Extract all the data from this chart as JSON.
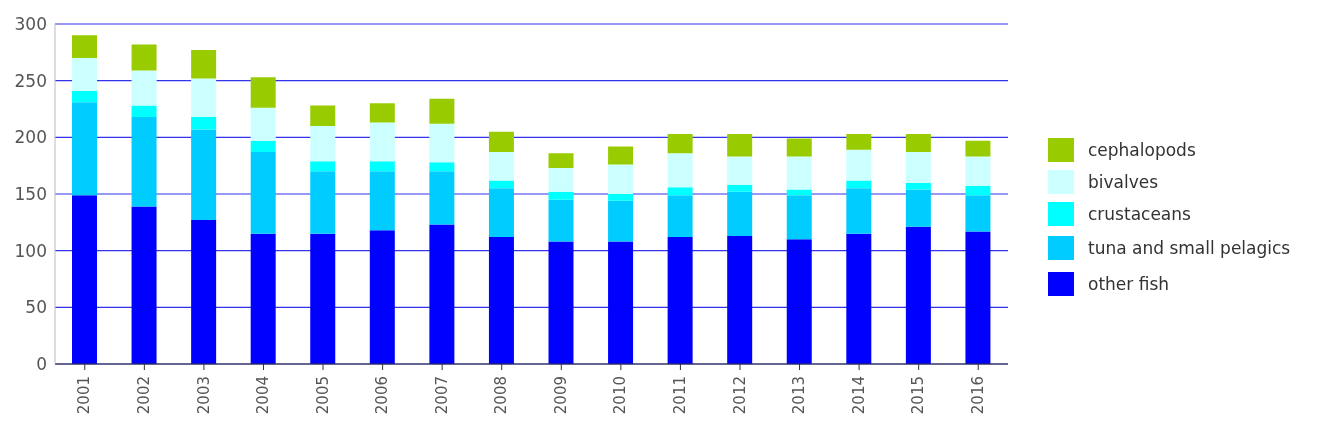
{
  "chart_data": {
    "type": "bar",
    "stacked": true,
    "categories": [
      "2001",
      "2002",
      "2003",
      "2004",
      "2005",
      "2006",
      "2007",
      "2008",
      "2009",
      "2010",
      "2011",
      "2012",
      "2013",
      "2014",
      "2015",
      "2016"
    ],
    "series": [
      {
        "name": "other fish",
        "color": "#0000ff",
        "values": [
          149,
          139,
          127,
          115,
          115,
          118,
          123,
          112,
          108,
          108,
          112,
          113,
          110,
          115,
          121,
          117
        ]
      },
      {
        "name": "tuna and small pelagics",
        "color": "#00ccff",
        "values": [
          82,
          79,
          80,
          72,
          55,
          52,
          47,
          43,
          37,
          36,
          37,
          39,
          39,
          40,
          33,
          32
        ]
      },
      {
        "name": "crustaceans",
        "color": "#00ffff",
        "values": [
          10,
          10,
          11,
          10,
          9,
          9,
          8,
          7,
          7,
          6,
          7,
          6,
          5,
          7,
          6,
          8
        ]
      },
      {
        "name": "bivalves",
        "color": "#ccffff",
        "values": [
          29,
          31,
          34,
          29,
          31,
          34,
          34,
          25,
          21,
          26,
          30,
          25,
          29,
          27,
          27,
          26
        ]
      },
      {
        "name": "cephalopods",
        "color": "#99cc00",
        "values": [
          20,
          23,
          25,
          27,
          18,
          17,
          22,
          18,
          13,
          16,
          17,
          20,
          16,
          14,
          16,
          14
        ]
      }
    ],
    "ylim": [
      0,
      300
    ],
    "yticks": [
      0,
      50,
      100,
      150,
      200,
      250,
      300
    ],
    "grid": "y",
    "legend": "right"
  }
}
